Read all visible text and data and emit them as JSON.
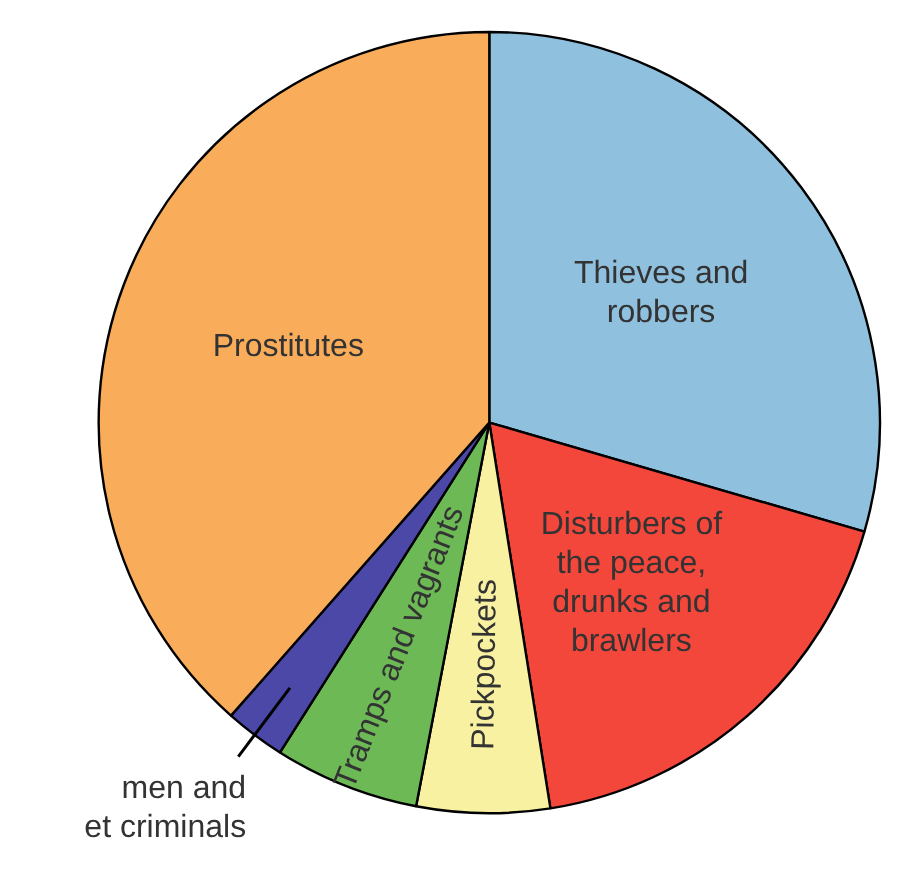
{
  "chart_data": {
    "type": "pie",
    "categories": [
      "Thieves and\nrobbers",
      "Disturbers of\nthe peace,\ndrunks and\nbrawlers",
      "Pickpockets",
      "Tramps and vagrants",
      "men and\net criminals",
      "Prostitutes"
    ],
    "values": [
      29.5,
      18,
      5.5,
      6,
      2.5,
      38.5
    ],
    "colors": [
      "#8fc0de",
      "#f4473b",
      "#f8f1a2",
      "#6cb956",
      "#4b48a8",
      "#f9ad5b"
    ]
  }
}
